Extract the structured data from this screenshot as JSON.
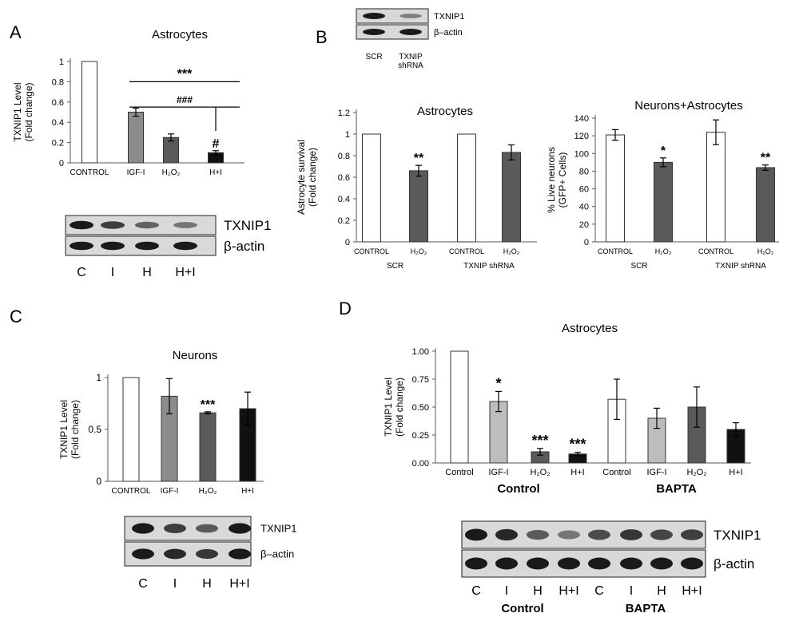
{
  "colors": {
    "white_bar": "#ffffff",
    "light_bar": "#bdbdbd",
    "mid_bar": "#8c8c8c",
    "dark_bar": "#5a5a5a",
    "black_bar": "#111111",
    "blot_bg": "#d9d9d9",
    "blot_band": "#1a1a1a"
  },
  "chart_data": [
    {
      "panel": "A",
      "type": "bar",
      "title": "Astrocytes",
      "ylabel": "TXNIP1 Level",
      "ylabel2": "(Fold change)",
      "ylim": [
        0,
        1
      ],
      "yticks": [
        "0",
        "0.2",
        "0.4",
        "0.6",
        "0.8",
        "1"
      ],
      "categories": [
        "CONTROL",
        "IGF-I",
        "H₂O₂",
        "H+I"
      ],
      "values": [
        1.0,
        0.5,
        0.25,
        0.1
      ],
      "errors": [
        0.0,
        0.04,
        0.035,
        0.02
      ],
      "fills": [
        "white",
        "mid",
        "dark",
        "black"
      ],
      "marks": [
        "",
        "",
        "",
        "#"
      ],
      "brackets": [
        {
          "label": "***",
          "from": 1,
          "to": 3,
          "y": 0.8
        },
        {
          "label": "###",
          "from": 1,
          "to": 3,
          "y": 0.55
        }
      ],
      "blot": {
        "bands": [
          "TXNIP1",
          "β-actin"
        ],
        "lanes": [
          "C",
          "I",
          "H",
          "H+I"
        ],
        "intensity": [
          [
            1.0,
            0.75,
            0.5,
            0.35
          ],
          [
            1.0,
            1.0,
            1.0,
            1.0
          ]
        ]
      }
    },
    {
      "panel": "B",
      "type": "bar",
      "title": "Astrocytes",
      "ylabel": "Astrocyte survival",
      "ylabel2": "(Fold change)",
      "ylim": [
        0,
        1.2
      ],
      "yticks": [
        "0",
        "0.2",
        "0.4",
        "0.6",
        "0.8",
        "1",
        "1.2"
      ],
      "categories": [
        "CONTROL",
        "H₂O₂",
        "CONTROL",
        "H₂O₂"
      ],
      "values": [
        1.0,
        0.66,
        1.0,
        0.83
      ],
      "errors": [
        0.0,
        0.05,
        0.0,
        0.07
      ],
      "fills": [
        "white",
        "dark",
        "white",
        "dark"
      ],
      "marks": [
        "",
        "**",
        "",
        ""
      ],
      "groups": [
        "SCR",
        "TXNIP shRNA"
      ],
      "blot": {
        "bands": [
          "TXNIP1",
          "β–actin"
        ],
        "lanes": [
          "SCR",
          "TXNIP shRNA"
        ],
        "intensity": [
          [
            1.0,
            0.3
          ],
          [
            1.0,
            1.0
          ]
        ]
      }
    },
    {
      "panel": "B2",
      "type": "bar",
      "title": "Neurons+Astrocytes",
      "ylabel": "% Live neurons",
      "ylabel2": "(GFP+ Cells)",
      "ylim": [
        0,
        140
      ],
      "yticks": [
        "0",
        "20",
        "40",
        "60",
        "80",
        "100",
        "120",
        "140"
      ],
      "categories": [
        "CONTROL",
        "H₂O₂",
        "CONTROL",
        "H₂O₂"
      ],
      "values": [
        121,
        90,
        124,
        84
      ],
      "errors": [
        6,
        5,
        14,
        3
      ],
      "fills": [
        "white",
        "dark",
        "white",
        "dark"
      ],
      "marks": [
        "",
        "*",
        "",
        "**"
      ],
      "groups": [
        "SCR",
        "TXNIP shRNA"
      ]
    },
    {
      "panel": "C",
      "type": "bar",
      "title": "Neurons",
      "ylabel": "TXNIP1 Level",
      "ylabel2": "(Fold change)",
      "ylim": [
        0,
        1
      ],
      "yticks": [
        "0",
        "0.5",
        "1"
      ],
      "categories": [
        "CONTROL",
        "IGF-I",
        "H₂O₂",
        "H+I"
      ],
      "values": [
        1.0,
        0.82,
        0.66,
        0.7
      ],
      "errors": [
        0.0,
        0.17,
        0.01,
        0.16
      ],
      "fills": [
        "white",
        "mid",
        "dark",
        "black"
      ],
      "marks": [
        "",
        "",
        "***",
        ""
      ],
      "blot": {
        "bands": [
          "TXNIP1",
          "β–actin"
        ],
        "lanes": [
          "C",
          "I",
          "H",
          "H+I"
        ],
        "intensity": [
          [
            1.0,
            0.75,
            0.55,
            1.0
          ],
          [
            1.0,
            0.9,
            0.8,
            1.0
          ]
        ]
      }
    },
    {
      "panel": "D",
      "type": "bar",
      "title": "Astrocytes",
      "ylabel": "TXNIP1 Level",
      "ylabel2": "(Fold change)",
      "ylim": [
        0,
        1
      ],
      "yticks": [
        "0.00",
        "0.25",
        "0.50",
        "0.75",
        "1.00"
      ],
      "categories": [
        "Control",
        "IGF-I",
        "H₂O₂",
        "H+I",
        "Control",
        "IGF-I",
        "H₂O₂",
        "H+I"
      ],
      "values": [
        1.0,
        0.55,
        0.1,
        0.08,
        0.57,
        0.4,
        0.5,
        0.3
      ],
      "errors": [
        0.0,
        0.09,
        0.03,
        0.015,
        0.18,
        0.09,
        0.18,
        0.06
      ],
      "fills": [
        "white",
        "light",
        "dark",
        "black",
        "white",
        "light",
        "dark",
        "black"
      ],
      "marks": [
        "",
        "*",
        "***",
        "***",
        "",
        "",
        "",
        ""
      ],
      "groups": [
        "Control",
        "BAPTA"
      ],
      "blot": {
        "bands": [
          "TXNIP1",
          "β-actin"
        ],
        "lanes": [
          "C",
          "I",
          "H",
          "H+I",
          "C",
          "I",
          "H",
          "H+I"
        ],
        "lane_groups": [
          "Control",
          "BAPTA"
        ],
        "intensity": [
          [
            1.0,
            0.9,
            0.55,
            0.35,
            0.65,
            0.8,
            0.7,
            0.75
          ],
          [
            1.0,
            1.0,
            1.0,
            1.0,
            1.0,
            1.0,
            1.0,
            1.0
          ]
        ]
      }
    }
  ],
  "panel_letters": [
    "A",
    "B",
    "C",
    "D"
  ]
}
